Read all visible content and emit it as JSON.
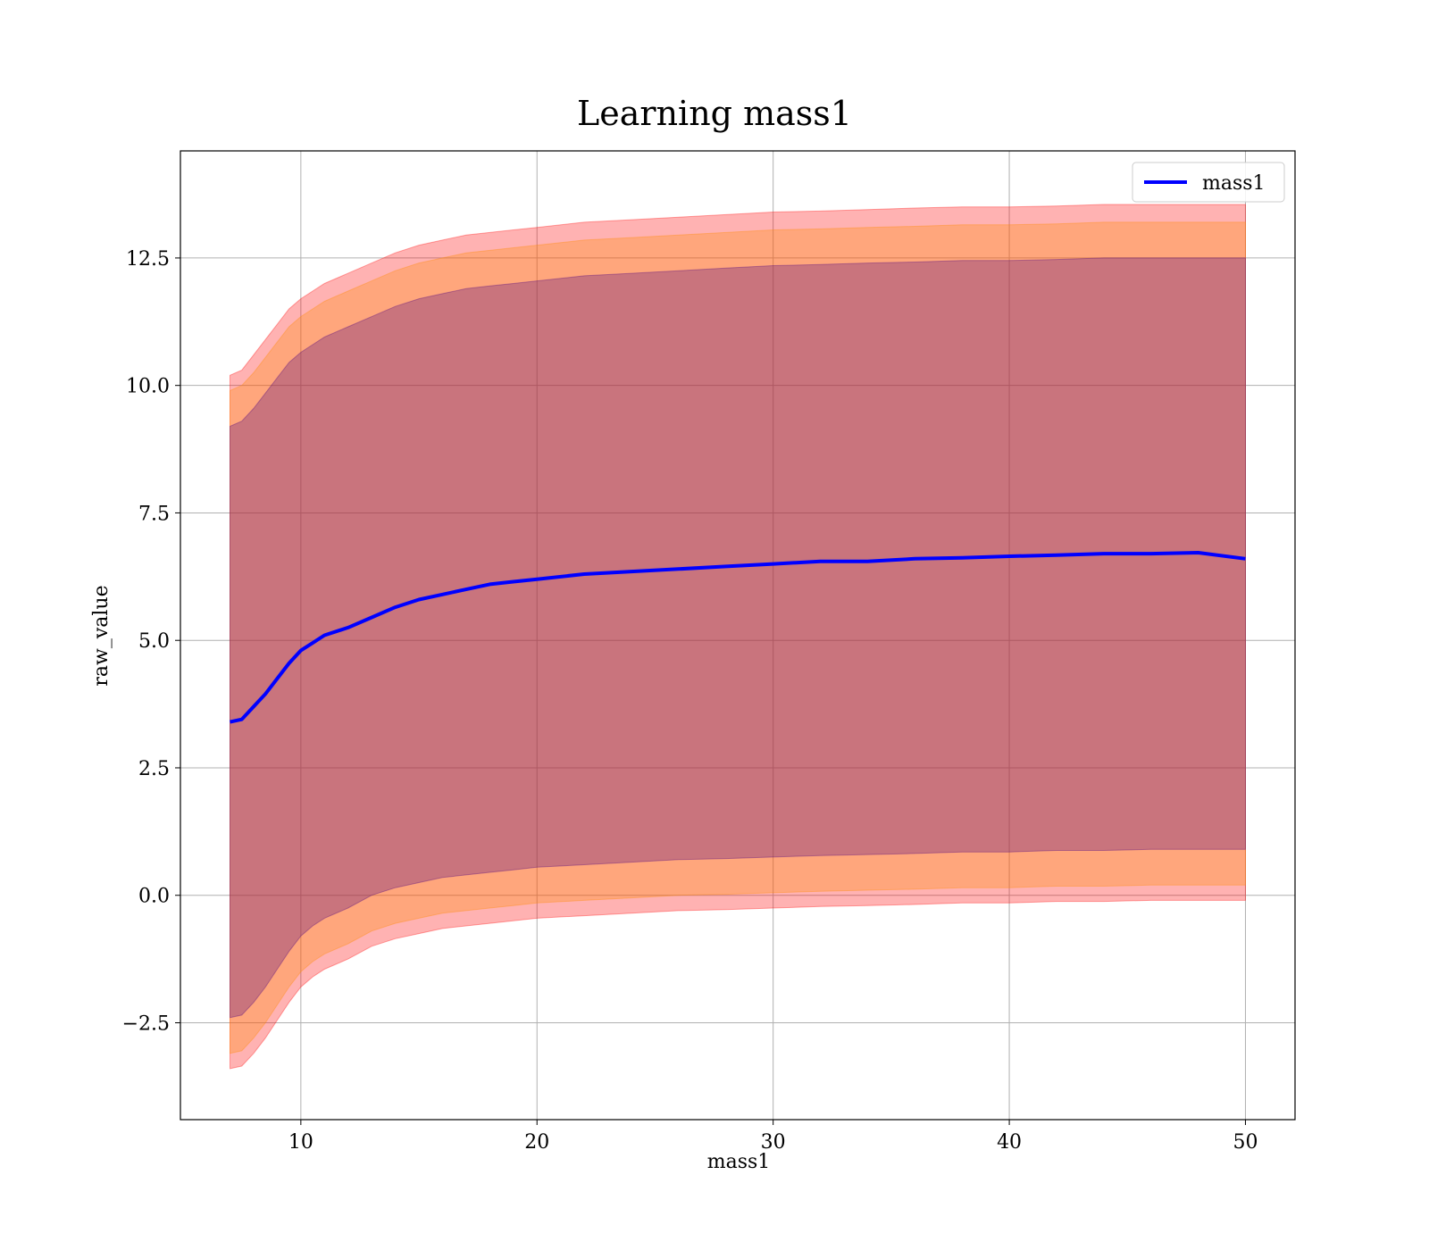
{
  "chart_data": {
    "type": "line",
    "title": "Learning mass1",
    "xlabel": "mass1",
    "ylabel": "raw_value",
    "xlim": [
      4.9,
      52.1
    ],
    "ylim": [
      -4.4,
      14.6
    ],
    "xticks": [
      10,
      20,
      30,
      40,
      50
    ],
    "xtick_labels": [
      "10",
      "20",
      "30",
      "40",
      "50"
    ],
    "yticks": [
      -2.5,
      0.0,
      2.5,
      5.0,
      7.5,
      10.0,
      12.5
    ],
    "ytick_labels": [
      "−2.5",
      "0.0",
      "2.5",
      "5.0",
      "7.5",
      "10.0",
      "12.5"
    ],
    "grid": true,
    "legend": {
      "placement": "top-right",
      "entries": [
        "mass1"
      ]
    },
    "series": [
      {
        "name": "mass1",
        "color": "#0000ff",
        "x": [
          7,
          7.5,
          8,
          8.5,
          9,
          9.5,
          10,
          10.5,
          11,
          12,
          13,
          14,
          15,
          16,
          17,
          18,
          19,
          20,
          22,
          24,
          26,
          28,
          30,
          32,
          34,
          36,
          38,
          40,
          42,
          44,
          46,
          48,
          50
        ],
        "values": [
          3.4,
          3.45,
          3.7,
          3.95,
          4.25,
          4.55,
          4.8,
          4.95,
          5.1,
          5.25,
          5.45,
          5.65,
          5.8,
          5.9,
          6.0,
          6.1,
          6.15,
          6.2,
          6.3,
          6.35,
          6.4,
          6.45,
          6.5,
          6.55,
          6.55,
          6.6,
          6.62,
          6.65,
          6.67,
          6.7,
          6.7,
          6.72,
          6.6
        ]
      }
    ],
    "bands": [
      {
        "name": "outer",
        "color": "#ff0000",
        "opacity": 0.3,
        "x": [
          7,
          7.5,
          8,
          8.5,
          9,
          9.5,
          10,
          10.5,
          11,
          12,
          13,
          14,
          15,
          16,
          17,
          18,
          19,
          20,
          22,
          24,
          26,
          28,
          30,
          32,
          34,
          36,
          38,
          40,
          42,
          44,
          46,
          48,
          50
        ],
        "upper": [
          10.2,
          10.3,
          10.6,
          10.9,
          11.2,
          11.5,
          11.7,
          11.85,
          12.0,
          12.2,
          12.4,
          12.6,
          12.75,
          12.85,
          12.95,
          13.0,
          13.05,
          13.1,
          13.2,
          13.25,
          13.3,
          13.35,
          13.4,
          13.42,
          13.45,
          13.48,
          13.5,
          13.5,
          13.52,
          13.55,
          13.55,
          13.55,
          13.55
        ],
        "lower": [
          -3.4,
          -3.35,
          -3.1,
          -2.8,
          -2.45,
          -2.1,
          -1.8,
          -1.6,
          -1.45,
          -1.25,
          -1.0,
          -0.85,
          -0.75,
          -0.65,
          -0.6,
          -0.55,
          -0.5,
          -0.45,
          -0.4,
          -0.35,
          -0.3,
          -0.28,
          -0.25,
          -0.22,
          -0.2,
          -0.18,
          -0.15,
          -0.15,
          -0.12,
          -0.12,
          -0.1,
          -0.1,
          -0.1
        ]
      },
      {
        "name": "middle",
        "color": "#ff8c00",
        "opacity": 0.3,
        "x": [
          7,
          7.5,
          8,
          8.5,
          9,
          9.5,
          10,
          10.5,
          11,
          12,
          13,
          14,
          15,
          16,
          17,
          18,
          19,
          20,
          22,
          24,
          26,
          28,
          30,
          32,
          34,
          36,
          38,
          40,
          42,
          44,
          46,
          48,
          50
        ],
        "upper": [
          9.9,
          10.0,
          10.25,
          10.55,
          10.85,
          11.15,
          11.35,
          11.5,
          11.65,
          11.85,
          12.05,
          12.25,
          12.4,
          12.5,
          12.6,
          12.65,
          12.7,
          12.75,
          12.85,
          12.9,
          12.95,
          13.0,
          13.05,
          13.07,
          13.1,
          13.12,
          13.15,
          13.15,
          13.17,
          13.2,
          13.2,
          13.2,
          13.2
        ],
        "lower": [
          -3.1,
          -3.05,
          -2.8,
          -2.5,
          -2.15,
          -1.8,
          -1.5,
          -1.3,
          -1.15,
          -0.95,
          -0.7,
          -0.55,
          -0.45,
          -0.35,
          -0.3,
          -0.25,
          -0.2,
          -0.15,
          -0.1,
          -0.05,
          0.0,
          0.02,
          0.05,
          0.08,
          0.1,
          0.12,
          0.15,
          0.15,
          0.18,
          0.18,
          0.2,
          0.2,
          0.2
        ]
      },
      {
        "name": "inner",
        "color": "#4b0082",
        "opacity": 0.3,
        "x": [
          7,
          7.5,
          8,
          8.5,
          9,
          9.5,
          10,
          10.5,
          11,
          12,
          13,
          14,
          15,
          16,
          17,
          18,
          19,
          20,
          22,
          24,
          26,
          28,
          30,
          32,
          34,
          36,
          38,
          40,
          42,
          44,
          46,
          48,
          50
        ],
        "upper": [
          9.2,
          9.3,
          9.55,
          9.85,
          10.15,
          10.45,
          10.65,
          10.8,
          10.95,
          11.15,
          11.35,
          11.55,
          11.7,
          11.8,
          11.9,
          11.95,
          12.0,
          12.05,
          12.15,
          12.2,
          12.25,
          12.3,
          12.35,
          12.37,
          12.4,
          12.42,
          12.45,
          12.45,
          12.47,
          12.5,
          12.5,
          12.5,
          12.5
        ],
        "lower": [
          -2.4,
          -2.35,
          -2.1,
          -1.8,
          -1.45,
          -1.1,
          -0.8,
          -0.6,
          -0.45,
          -0.25,
          0.0,
          0.15,
          0.25,
          0.35,
          0.4,
          0.45,
          0.5,
          0.55,
          0.6,
          0.65,
          0.7,
          0.72,
          0.75,
          0.78,
          0.8,
          0.82,
          0.85,
          0.85,
          0.88,
          0.88,
          0.9,
          0.9,
          0.9
        ]
      }
    ]
  }
}
